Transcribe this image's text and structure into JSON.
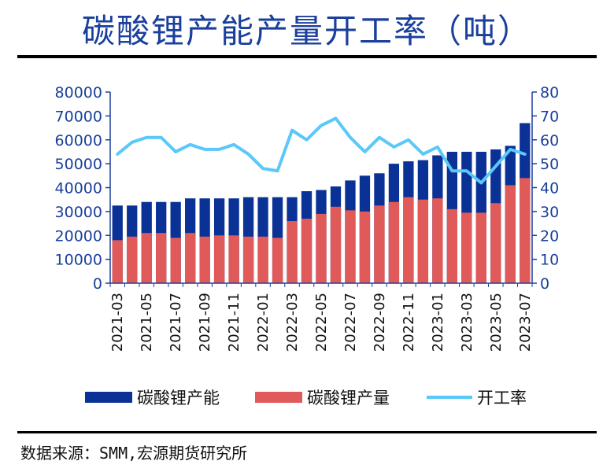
{
  "title": "碳酸锂产能产量开工率（吨）",
  "source": "数据来源：SMM,宏源期货研究所",
  "colors": {
    "capacity": "#0a3296",
    "production": "#e05a5a",
    "rate": "#5ac8fa",
    "axis": "#1a3f9c"
  },
  "chart_data": {
    "type": "bar",
    "title": "碳酸锂产能产量开工率（吨）",
    "categories": [
      "2021-03",
      "2021-04",
      "2021-05",
      "2021-06",
      "2021-07",
      "2021-08",
      "2021-09",
      "2021-10",
      "2021-11",
      "2021-12",
      "2022-01",
      "2022-02",
      "2022-03",
      "2022-04",
      "2022-05",
      "2022-06",
      "2022-07",
      "2022-08",
      "2022-09",
      "2022-10",
      "2022-11",
      "2022-12",
      "2023-01",
      "2023-02",
      "2023-03",
      "2023-04",
      "2023-05",
      "2023-06",
      "2023-07"
    ],
    "x_tick_labels": [
      "2021-03",
      "2021-05",
      "2021-07",
      "2021-09",
      "2021-11",
      "2022-01",
      "2022-03",
      "2022-05",
      "2022-07",
      "2022-09",
      "2022-11",
      "2023-01",
      "2023-03",
      "2023-05",
      "2023-07"
    ],
    "y_ticks": [
      "0",
      "10000",
      "20000",
      "30000",
      "40000",
      "50000",
      "60000",
      "70000",
      "80000"
    ],
    "y2_ticks": [
      "0",
      "10",
      "20",
      "30",
      "40",
      "50",
      "60",
      "70",
      "80"
    ],
    "ylim": [
      0,
      80000
    ],
    "y2lim": [
      0,
      80
    ],
    "legend_position": "bottom",
    "series": [
      {
        "name": "碳酸锂产能",
        "kind": "bar",
        "axis": "left",
        "values": [
          32500,
          32500,
          34000,
          34000,
          34000,
          35500,
          35500,
          35500,
          35500,
          36000,
          36000,
          36000,
          36000,
          38500,
          39000,
          40500,
          43000,
          45000,
          46000,
          50000,
          51000,
          51500,
          53500,
          55000,
          55000,
          55000,
          56000,
          57500,
          67000
        ]
      },
      {
        "name": "碳酸锂产量",
        "kind": "bar",
        "axis": "left",
        "values": [
          18000,
          19500,
          21000,
          21000,
          19000,
          21000,
          19500,
          20000,
          20000,
          19500,
          19500,
          19000,
          26000,
          27000,
          29000,
          32000,
          30500,
          30000,
          32500,
          34000,
          36000,
          35000,
          35500,
          31000,
          29500,
          29500,
          33500,
          41000,
          44000
        ]
      },
      {
        "name": "开工率",
        "kind": "line",
        "axis": "right",
        "values": [
          54,
          59,
          61,
          61,
          55,
          58,
          56,
          56,
          58,
          54,
          48,
          47,
          64,
          60,
          66,
          69,
          61,
          55,
          61,
          57,
          60,
          54,
          57,
          47,
          47,
          42,
          49,
          56,
          54
        ]
      }
    ]
  }
}
